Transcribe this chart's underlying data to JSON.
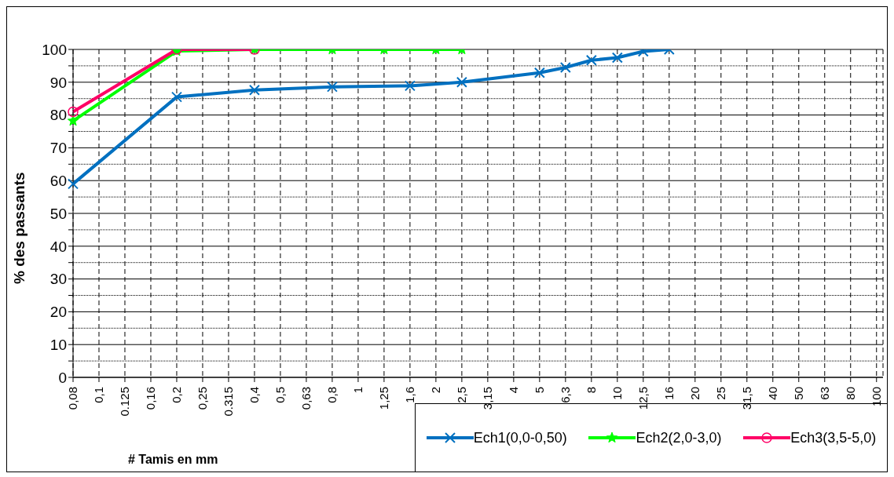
{
  "chart_data": {
    "type": "line",
    "xlabel": "# Tamis en mm",
    "ylabel": "% des passants",
    "categories": [
      "0,08",
      "0,1",
      "0.125",
      "0,16",
      "0,2",
      "0,25",
      "0.315",
      "0,4",
      "0,5",
      "0,63",
      "0,8",
      "1",
      "1,25",
      "1,6",
      "2",
      "2,5",
      "3,15",
      "4",
      "5",
      "6,3",
      "8",
      "10",
      "12,5",
      "16",
      "20",
      "25",
      "31,5",
      "40",
      "50",
      "63",
      "80",
      "100"
    ],
    "series": [
      {
        "name": "Ech1(0,0-0,50)",
        "color": "#0070c0",
        "marker": "cross",
        "values": [
          59,
          null,
          null,
          null,
          85.5,
          null,
          null,
          87.6,
          null,
          null,
          88.6,
          null,
          null,
          88.9,
          null,
          90,
          null,
          null,
          92.9,
          94.5,
          96.7,
          97.5,
          99.4,
          100,
          null,
          null,
          null,
          null,
          null,
          null,
          null,
          null
        ]
      },
      {
        "name": "Ech2(2,0-3,0)",
        "color": "#00ff00",
        "marker": "star",
        "values": [
          78.2,
          null,
          null,
          null,
          99.5,
          null,
          null,
          100,
          null,
          null,
          100,
          null,
          100,
          null,
          100,
          100,
          null,
          null,
          null,
          null,
          null,
          null,
          null,
          null,
          null,
          null,
          null,
          null,
          null,
          null,
          null,
          null
        ]
      },
      {
        "name": "Ech3(3,5-5,0)",
        "color": "#ff0066",
        "marker": "circle",
        "values": [
          81,
          null,
          null,
          null,
          100,
          null,
          null,
          100,
          null,
          null,
          null,
          null,
          null,
          null,
          null,
          null,
          null,
          null,
          null,
          null,
          null,
          null,
          null,
          null,
          null,
          null,
          null,
          null,
          null,
          null,
          null,
          null
        ]
      }
    ],
    "ylim": [
      0,
      100
    ],
    "yticks": [
      0,
      {
        "value": 5,
        "label": null
      },
      10,
      {
        "value": 15,
        "label": null
      },
      20,
      {
        "value": 25,
        "label": null
      },
      30,
      {
        "value": 35,
        "label": null
      },
      40,
      {
        "value": 45,
        "label": null
      },
      50,
      {
        "value": 55,
        "label": null
      },
      60,
      {
        "value": 65,
        "label": null
      },
      70,
      {
        "value": 75,
        "label": null
      },
      80,
      {
        "value": 85,
        "label": null
      },
      90,
      {
        "value": 95,
        "label": null
      },
      100
    ],
    "grid": true,
    "legend": "bottom right",
    "line_style": "solid"
  }
}
